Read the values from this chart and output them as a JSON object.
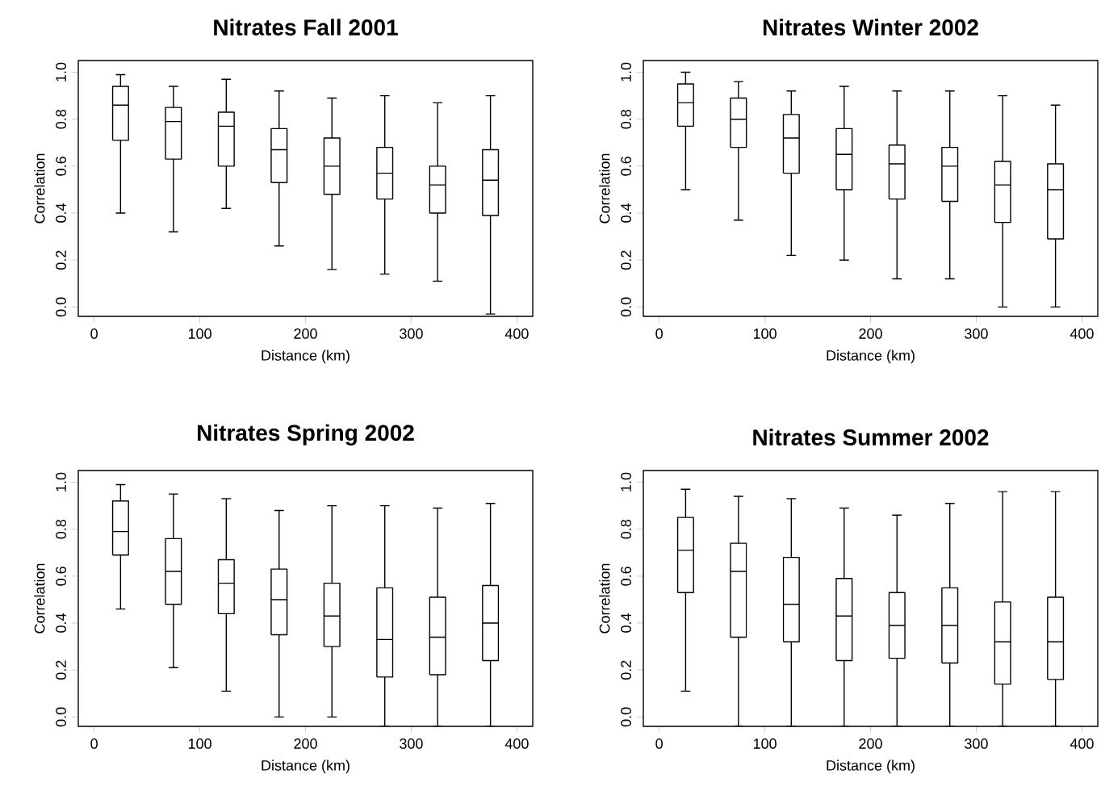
{
  "chart_data": [
    {
      "type": "box",
      "title": "Nitrates Fall 2001",
      "xlabel": "Distance (km)",
      "ylabel": "Correlation",
      "x": [
        25,
        75,
        125,
        175,
        225,
        275,
        325,
        375
      ],
      "boxes": [
        {
          "low": 0.4,
          "q1": 0.71,
          "median": 0.86,
          "q3": 0.94,
          "high": 0.99
        },
        {
          "low": 0.32,
          "q1": 0.63,
          "median": 0.79,
          "q3": 0.85,
          "high": 0.94
        },
        {
          "low": 0.42,
          "q1": 0.6,
          "median": 0.77,
          "q3": 0.83,
          "high": 0.97
        },
        {
          "low": 0.26,
          "q1": 0.53,
          "median": 0.67,
          "q3": 0.76,
          "high": 0.92
        },
        {
          "low": 0.16,
          "q1": 0.48,
          "median": 0.6,
          "q3": 0.72,
          "high": 0.89
        },
        {
          "low": 0.14,
          "q1": 0.46,
          "median": 0.57,
          "q3": 0.68,
          "high": 0.9
        },
        {
          "low": 0.11,
          "q1": 0.4,
          "median": 0.52,
          "q3": 0.6,
          "high": 0.87
        },
        {
          "low": -0.03,
          "q1": 0.39,
          "median": 0.54,
          "q3": 0.67,
          "high": 0.9
        }
      ],
      "xlim": [
        -15,
        415
      ],
      "ylim": [
        -0.04,
        1.05
      ],
      "xticks": [
        0,
        100,
        200,
        300,
        400
      ],
      "yticks": [
        {
          "value": 0,
          "label": "0.0"
        },
        {
          "value": 0.2,
          "label": "0.2"
        },
        {
          "value": 0.4,
          "label": "0.4"
        },
        {
          "value": 0.6,
          "label": "0.6"
        },
        {
          "value": 0.8,
          "label": "0.8"
        },
        {
          "value": 1,
          "label": "1.0"
        }
      ]
    },
    {
      "type": "box",
      "title": "Nitrates Winter 2002",
      "xlabel": "Distance (km)",
      "ylabel": "Correlation",
      "x": [
        25,
        75,
        125,
        175,
        225,
        275,
        325,
        375
      ],
      "boxes": [
        {
          "low": 0.5,
          "q1": 0.77,
          "median": 0.87,
          "q3": 0.95,
          "high": 1.0
        },
        {
          "low": 0.37,
          "q1": 0.68,
          "median": 0.8,
          "q3": 0.89,
          "high": 0.96
        },
        {
          "low": 0.22,
          "q1": 0.57,
          "median": 0.72,
          "q3": 0.82,
          "high": 0.92
        },
        {
          "low": 0.2,
          "q1": 0.5,
          "median": 0.65,
          "q3": 0.76,
          "high": 0.94
        },
        {
          "low": 0.12,
          "q1": 0.46,
          "median": 0.61,
          "q3": 0.69,
          "high": 0.92
        },
        {
          "low": 0.12,
          "q1": 0.45,
          "median": 0.6,
          "q3": 0.68,
          "high": 0.92
        },
        {
          "low": 0.0,
          "q1": 0.36,
          "median": 0.52,
          "q3": 0.62,
          "high": 0.9
        },
        {
          "low": 0.0,
          "q1": 0.29,
          "median": 0.5,
          "q3": 0.61,
          "high": 0.86
        }
      ],
      "xlim": [
        -15,
        415
      ],
      "ylim": [
        -0.04,
        1.05
      ],
      "xticks": [
        0,
        100,
        200,
        300,
        400
      ],
      "yticks": [
        {
          "value": 0,
          "label": "0.0"
        },
        {
          "value": 0.2,
          "label": "0.2"
        },
        {
          "value": 0.4,
          "label": "0.4"
        },
        {
          "value": 0.6,
          "label": "0.6"
        },
        {
          "value": 0.8,
          "label": "0.8"
        },
        {
          "value": 1,
          "label": "1.0"
        }
      ]
    },
    {
      "type": "box",
      "title": "Nitrates Spring 2002",
      "xlabel": "Distance (km)",
      "ylabel": "Correlation",
      "x": [
        25,
        75,
        125,
        175,
        225,
        275,
        325,
        375
      ],
      "boxes": [
        {
          "low": 0.46,
          "q1": 0.69,
          "median": 0.79,
          "q3": 0.92,
          "high": 0.99
        },
        {
          "low": 0.21,
          "q1": 0.48,
          "median": 0.62,
          "q3": 0.76,
          "high": 0.95
        },
        {
          "low": 0.11,
          "q1": 0.44,
          "median": 0.57,
          "q3": 0.67,
          "high": 0.93
        },
        {
          "low": 0.0,
          "q1": 0.35,
          "median": 0.5,
          "q3": 0.63,
          "high": 0.88
        },
        {
          "low": 0.0,
          "q1": 0.3,
          "median": 0.43,
          "q3": 0.57,
          "high": 0.9
        },
        {
          "low": -0.04,
          "q1": 0.17,
          "median": 0.33,
          "q3": 0.55,
          "high": 0.9
        },
        {
          "low": -0.04,
          "q1": 0.18,
          "median": 0.34,
          "q3": 0.51,
          "high": 0.89
        },
        {
          "low": -0.04,
          "q1": 0.24,
          "median": 0.4,
          "q3": 0.56,
          "high": 0.91
        }
      ],
      "xlim": [
        -15,
        415
      ],
      "ylim": [
        -0.04,
        1.05
      ],
      "xticks": [
        0,
        100,
        200,
        300,
        400
      ],
      "yticks": [
        {
          "value": 0,
          "label": "0.0"
        },
        {
          "value": 0.2,
          "label": "0.2"
        },
        {
          "value": 0.4,
          "label": "0.4"
        },
        {
          "value": 0.6,
          "label": "0.6"
        },
        {
          "value": 0.8,
          "label": "0.8"
        },
        {
          "value": 1,
          "label": "1.0"
        }
      ]
    },
    {
      "type": "box",
      "title": "Nitrates Summer 2002",
      "xlabel": "Distance (km)",
      "ylabel": "Correlation",
      "x": [
        25,
        75,
        125,
        175,
        225,
        275,
        325,
        375
      ],
      "boxes": [
        {
          "low": 0.11,
          "q1": 0.53,
          "median": 0.71,
          "q3": 0.85,
          "high": 0.97
        },
        {
          "low": -0.04,
          "q1": 0.34,
          "median": 0.62,
          "q3": 0.74,
          "high": 0.94
        },
        {
          "low": -0.04,
          "q1": 0.32,
          "median": 0.48,
          "q3": 0.68,
          "high": 0.93
        },
        {
          "low": -0.04,
          "q1": 0.24,
          "median": 0.43,
          "q3": 0.59,
          "high": 0.89
        },
        {
          "low": -0.04,
          "q1": 0.25,
          "median": 0.39,
          "q3": 0.53,
          "high": 0.86
        },
        {
          "low": -0.04,
          "q1": 0.23,
          "median": 0.39,
          "q3": 0.55,
          "high": 0.91
        },
        {
          "low": -0.04,
          "q1": 0.14,
          "median": 0.32,
          "q3": 0.49,
          "high": 0.96
        },
        {
          "low": -0.04,
          "q1": 0.16,
          "median": 0.32,
          "q3": 0.51,
          "high": 0.96
        }
      ],
      "xlim": [
        -15,
        415
      ],
      "ylim": [
        -0.04,
        1.05
      ],
      "xticks": [
        0,
        100,
        200,
        300,
        400
      ],
      "yticks": [
        {
          "value": 0,
          "label": "0.0"
        },
        {
          "value": 0.2,
          "label": "0.2"
        },
        {
          "value": 0.4,
          "label": "0.4"
        },
        {
          "value": 0.6,
          "label": "0.6"
        },
        {
          "value": 0.8,
          "label": "0.8"
        },
        {
          "value": 1,
          "label": "1.0"
        }
      ]
    }
  ]
}
